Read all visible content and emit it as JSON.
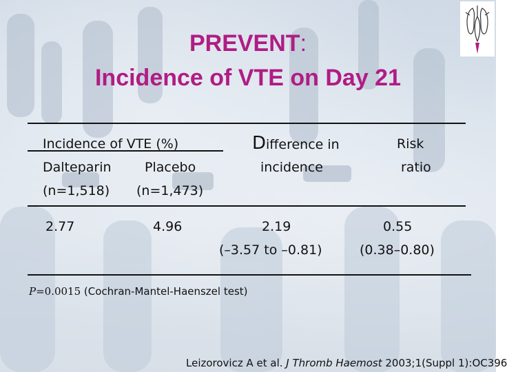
{
  "title": {
    "line1_bold": "PREVENT",
    "line1_colon": ":",
    "line2": "Incidence of VTE on Day 21"
  },
  "table": {
    "group_header": "Incidence of VTE (%)",
    "difference_header_initial": "D",
    "difference_header_rest": "ifference in",
    "difference_header_line2": "incidence",
    "risk_header_line1": "Risk",
    "risk_header_line2": "ratio",
    "dalteparin_label": "Dalteparin",
    "dalteparin_n": "(n=1,518)",
    "placebo_label": "Placebo",
    "placebo_n": "(n=1,473)",
    "dalteparin_value": "2.77",
    "placebo_value": "4.96",
    "difference_value": "2.19",
    "difference_ci": "(–3.57 to –0.81)",
    "risk_value": "0.55",
    "risk_ci": "(0.38–0.80)"
  },
  "footnote": {
    "p_label": "P",
    "p_value": "=0.0015",
    "test": " (Cochran-Mantel-Haenszel test)"
  },
  "citation": {
    "authors": "Leizorovicz A et al. ",
    "journal": "J Thromb Haemost",
    "details": " 2003;1(Suppl 1):OC396"
  },
  "colors": {
    "title": "#b01c84",
    "text": "#111111",
    "background": "#c9d6e2"
  },
  "icons": {
    "logo": "heart-lungs-logo-icon"
  }
}
